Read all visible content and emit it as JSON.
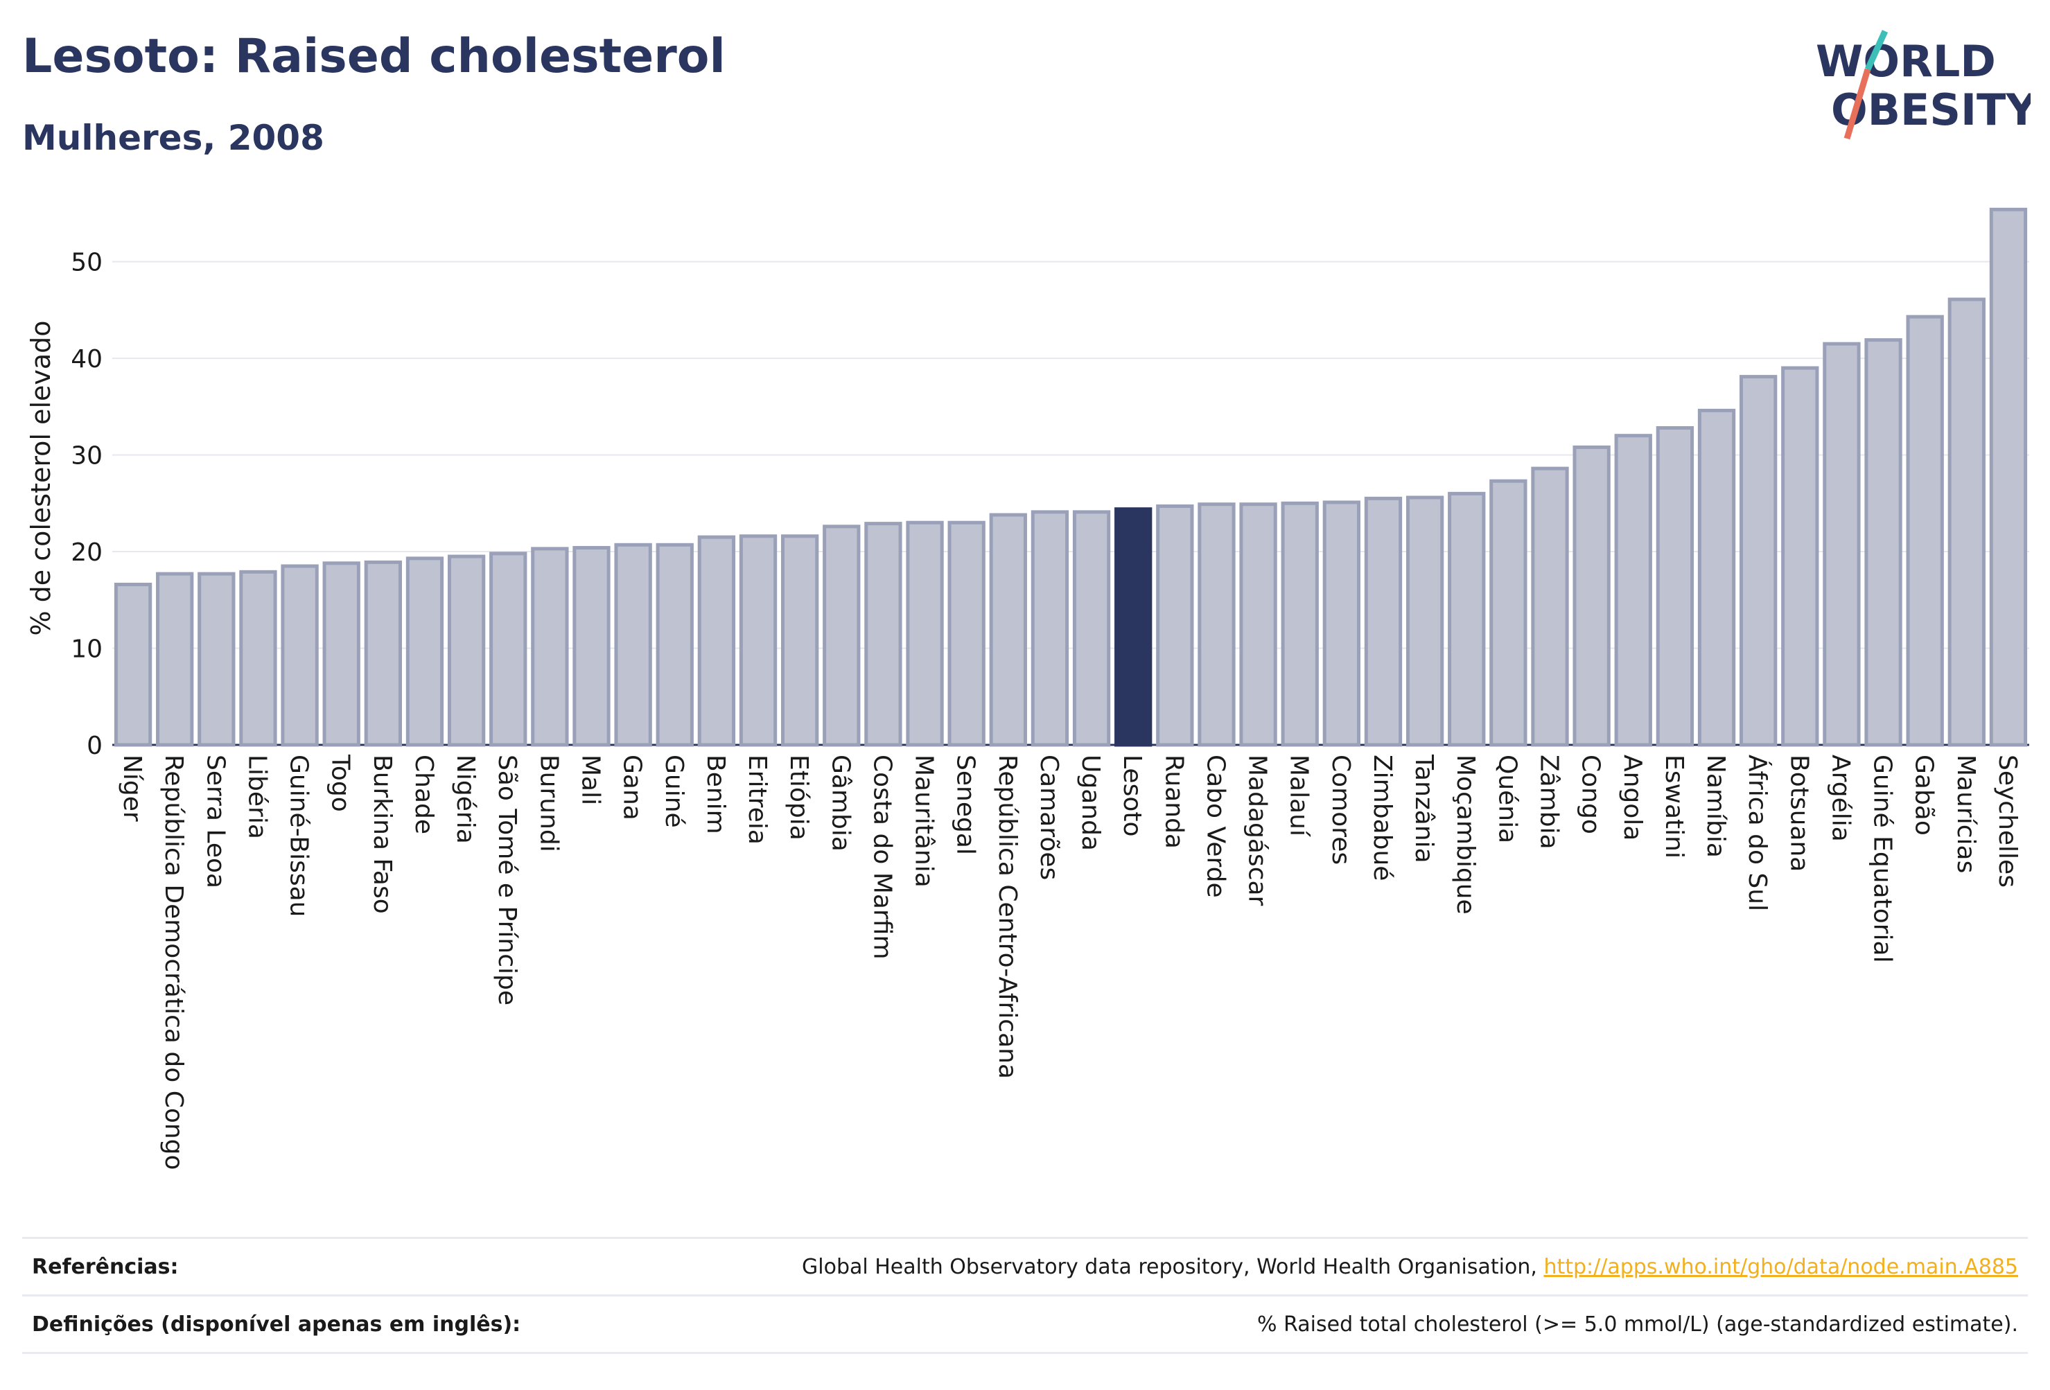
{
  "header": {
    "title": "Lesoto: Raised cholesterol",
    "subtitle": "Mulheres, 2008",
    "logo_line1": "WORLD",
    "logo_line2": "OBESITY"
  },
  "colors": {
    "title": "#2a3560",
    "bar": "#bfc3d1",
    "bar_border": "#9aa0b8",
    "highlight": "#2a3560",
    "link": "#f2b01e",
    "logo_teal": "#3bbfb8",
    "logo_coral": "#e8705a"
  },
  "chart_data": {
    "type": "bar",
    "ylabel": "% de colesterol elevado",
    "xlabel": "",
    "ylim": [
      0,
      57
    ],
    "yticks": [
      0,
      10,
      20,
      30,
      40,
      50
    ],
    "grid": true,
    "highlight": "Lesoto",
    "categories": [
      "Níger",
      "República Democrática do Congo",
      "Serra Leoa",
      "Libéria",
      "Guiné-Bissau",
      "Togo",
      "Burkina Faso",
      "Chade",
      "Nigéria",
      "São Tomé e Príncipe",
      "Burundi",
      "Mali",
      "Gana",
      "Guiné",
      "Benim",
      "Eritreia",
      "Etiópia",
      "Gâmbia",
      "Costa do Marfim",
      "Mauritânia",
      "Senegal",
      "República Centro-Africana",
      "Camarões",
      "Uganda",
      "Lesoto",
      "Ruanda",
      "Cabo Verde",
      "Madagáscar",
      "Malauí",
      "Comores",
      "Zimbabué",
      "Tanzânia",
      "Moçambique",
      "Quénia",
      "Zâmbia",
      "Congo",
      "Angola",
      "Eswatini",
      "Namíbia",
      "África do Sul",
      "Botsuana",
      "Argélia",
      "Guiné Equatorial",
      "Gabão",
      "Maurícias",
      "Seychelles"
    ],
    "values": [
      16.6,
      17.7,
      17.7,
      17.9,
      18.5,
      18.8,
      18.9,
      19.3,
      19.5,
      19.8,
      20.3,
      20.4,
      20.7,
      20.7,
      21.5,
      21.6,
      21.6,
      22.6,
      22.9,
      23.0,
      23.0,
      23.8,
      24.1,
      24.1,
      24.4,
      24.7,
      24.9,
      24.9,
      25.0,
      25.1,
      25.5,
      25.6,
      26.0,
      27.3,
      28.6,
      30.8,
      32.0,
      32.8,
      34.6,
      38.1,
      39.0,
      41.5,
      41.9,
      44.3,
      46.1,
      55.4
    ]
  },
  "footer": {
    "ref_label": "Referências:",
    "ref_text": "Global Health Observatory data repository, World Health Organisation, ",
    "ref_link": "http://apps.who.int/gho/data/node.main.A885",
    "def_label": "Definições (disponível apenas em inglês):",
    "def_text": "% Raised total cholesterol (>= 5.0 mmol/L) (age-standardized estimate)."
  }
}
